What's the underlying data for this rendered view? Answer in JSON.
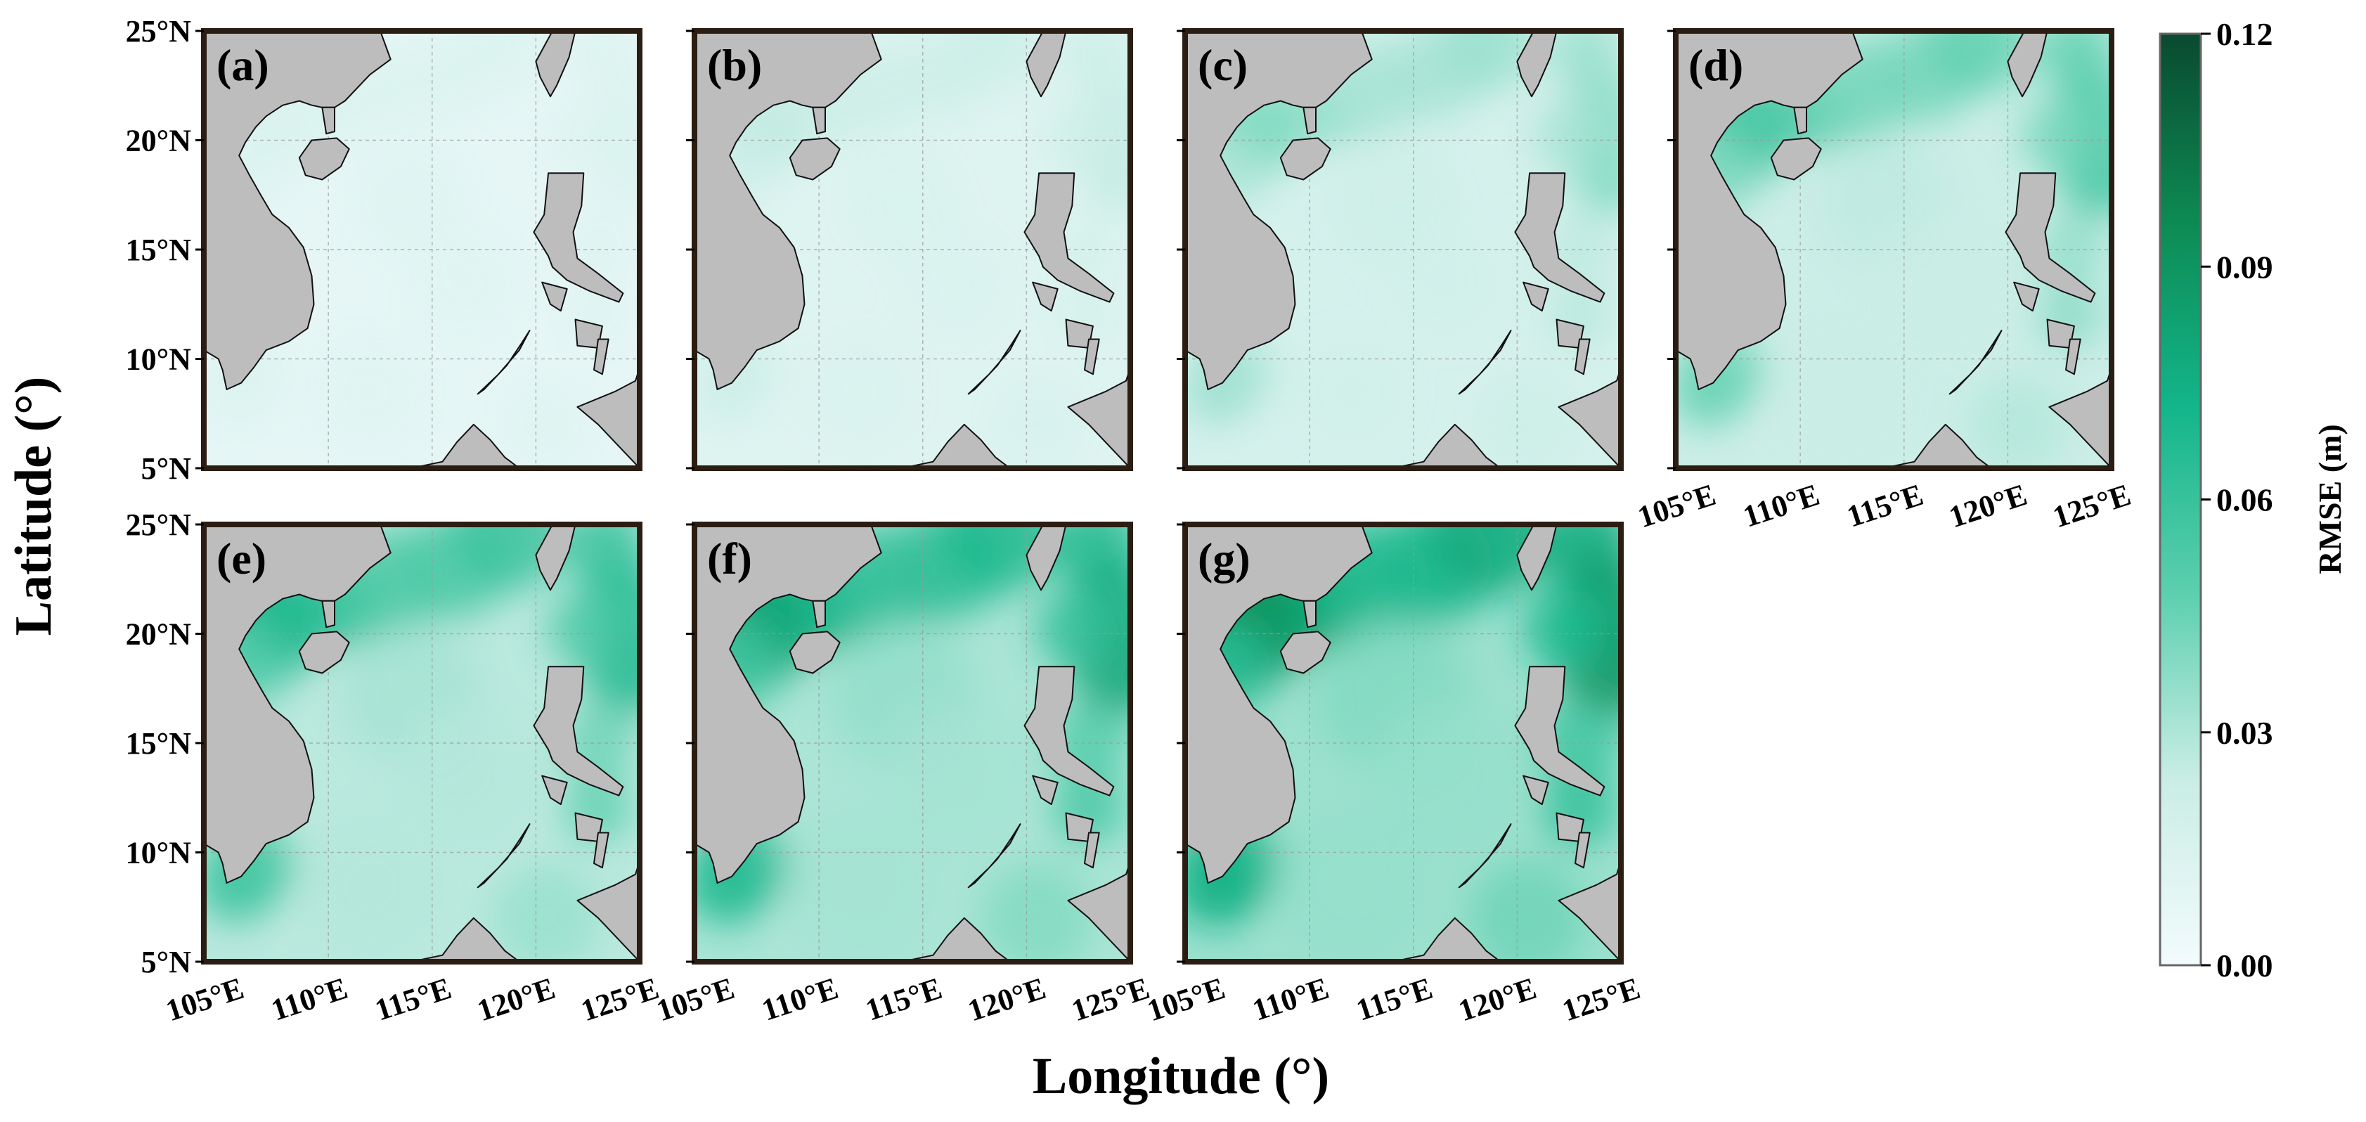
{
  "figure": {
    "x_axis_label": "Longitude (°)",
    "y_axis_label": "Latitude (°)",
    "panels": [
      {
        "label": "(a)",
        "intensity": 0.08
      },
      {
        "label": "(b)",
        "intensity": 0.22
      },
      {
        "label": "(c)",
        "intensity": 0.4
      },
      {
        "label": "(d)",
        "intensity": 0.58
      },
      {
        "label": "(e)",
        "intensity": 0.75
      },
      {
        "label": "(f)",
        "intensity": 0.88
      },
      {
        "label": "(g)",
        "intensity": 1.0
      }
    ],
    "lon_ticks": [
      "105°E",
      "110°E",
      "115°E",
      "120°E",
      "125°E"
    ],
    "lat_ticks": [
      "25°N",
      "20°N",
      "15°N",
      "10°N",
      "5°N"
    ],
    "extent": {
      "lon": [
        104,
        125
      ],
      "lat": [
        5,
        25
      ]
    },
    "colorbar": {
      "label": "RMSE (m)",
      "ticks": [
        "0.12",
        "0.09",
        "0.06",
        "0.03",
        "0.00"
      ],
      "range": [
        0.0,
        0.12
      ],
      "colors": [
        "#f3fbfd",
        "#c9ede5",
        "#5ccfae",
        "#13b58a",
        "#0d8a53",
        "#0a4a30"
      ]
    },
    "land_color": "#bdbdbd",
    "ocean_base_color": "#eef9fc"
  }
}
